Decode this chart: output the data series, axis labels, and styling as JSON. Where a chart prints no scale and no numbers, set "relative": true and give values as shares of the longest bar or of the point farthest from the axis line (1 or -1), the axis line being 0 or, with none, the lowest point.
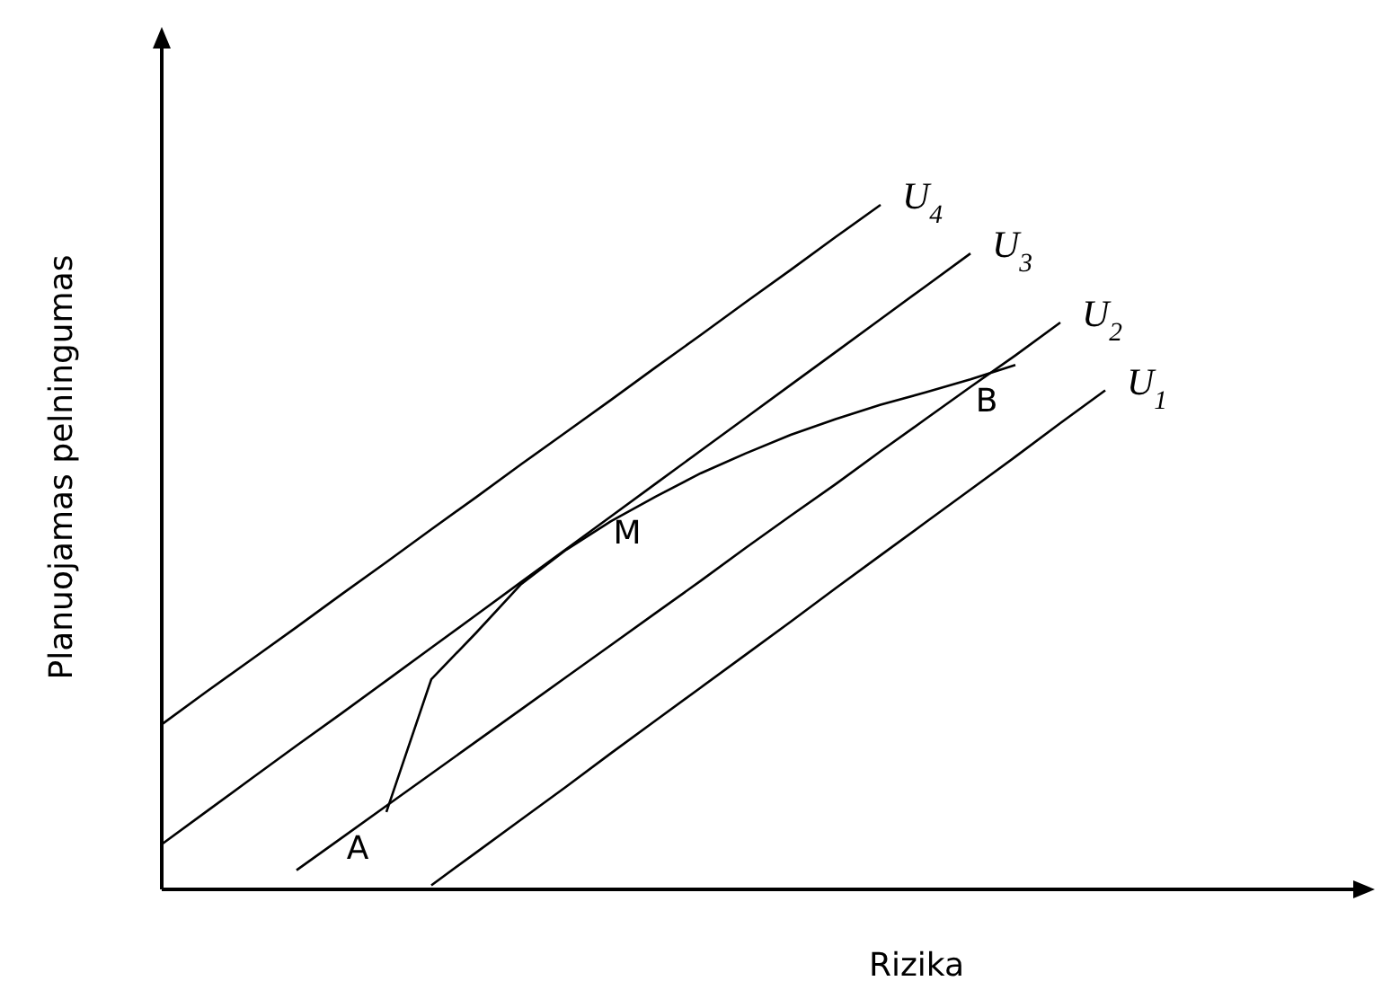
{
  "chart_data": {
    "type": "line",
    "xlabel": "Rizika",
    "ylabel": "Planuojamas pelningumas",
    "relative": true,
    "line_style": "solid",
    "categories": [
      null,
      null,
      null,
      null,
      null,
      null,
      null,
      null,
      null,
      null,
      null,
      null,
      null,
      null,
      null,
      null,
      null,
      null,
      null,
      null,
      null,
      null,
      null,
      null,
      null,
      null,
      null,
      null
    ],
    "series": [
      {
        "name": "U$_{4}$",
        "color": "#000000",
        "values": [
          0.241,
          0.289,
          0.336,
          0.383,
          0.431,
          0.478,
          0.526,
          0.573,
          0.621,
          0.668,
          0.715,
          0.763,
          0.81,
          0.858,
          0.905,
          0.953,
          1,
          null,
          null,
          null,
          null,
          null,
          null,
          null,
          null,
          null,
          null,
          null
        ]
      },
      {
        "name": "U$_{3}$",
        "color": "#000000",
        "values": [
          0.066,
          0.114,
          0.162,
          0.21,
          0.257,
          0.305,
          0.353,
          0.401,
          0.449,
          0.497,
          0.545,
          0.593,
          0.641,
          0.689,
          0.737,
          0.785,
          0.833,
          0.881,
          0.929,
          null,
          null,
          null,
          null,
          null,
          null,
          null,
          null,
          null
        ]
      },
      {
        "name": "U$_{2}$",
        "color": "#000000",
        "values": [
          null,
          null,
          null,
          0.028,
          0.075,
          0.122,
          0.169,
          0.216,
          0.263,
          0.31,
          0.357,
          0.404,
          0.451,
          0.499,
          0.546,
          0.592,
          0.64,
          0.687,
          0.734,
          0.78,
          0.828,
          null,
          null,
          null,
          null,
          null,
          null,
          null
        ]
      },
      {
        "name": "U$_{1}$",
        "color": "#000000",
        "values": [
          null,
          null,
          null,
          null,
          null,
          null,
          0.006,
          0.054,
          0.102,
          0.15,
          0.199,
          0.247,
          0.295,
          0.343,
          0.391,
          0.44,
          0.488,
          0.536,
          0.584,
          0.632,
          0.681,
          0.729,
          null,
          null,
          null,
          null,
          null,
          null
        ]
      },
      {
        "color": "#000000",
        "values": [
          null,
          null,
          null,
          null,
          null,
          0.113,
          0.307,
          0.375,
          0.446,
          0.496,
          0.538,
          0.574,
          0.608,
          0.637,
          0.664,
          0.687,
          0.708,
          0.726,
          0.745,
          0.766,
          null,
          null,
          null,
          null,
          null,
          null,
          null,
          null
        ]
      }
    ],
    "annotations": [
      "A",
      "M",
      "B"
    ]
  }
}
